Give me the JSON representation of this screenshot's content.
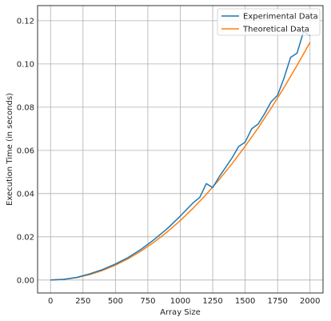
{
  "chart_data": {
    "type": "line",
    "title": "",
    "xlabel": "Array Size",
    "ylabel": "Execution Time (in seconds)",
    "xlim": [
      -100,
      2100
    ],
    "ylim": [
      -0.006,
      0.127
    ],
    "xticks": [
      0,
      250,
      500,
      750,
      1000,
      1250,
      1500,
      1750,
      2000
    ],
    "yticks": [
      0.0,
      0.02,
      0.04,
      0.06,
      0.08,
      0.1,
      0.12
    ],
    "ytick_labels": [
      "0.00",
      "0.02",
      "0.04",
      "0.06",
      "0.08",
      "0.10",
      "0.12"
    ],
    "grid": true,
    "legend_position": "top-right",
    "series": [
      {
        "name": "Experimental Data",
        "color": "#1f77b4",
        "x": [
          0,
          100,
          200,
          300,
          400,
          500,
          600,
          700,
          800,
          900,
          1000,
          1100,
          1150,
          1200,
          1250,
          1300,
          1350,
          1400,
          1450,
          1500,
          1550,
          1600,
          1650,
          1700,
          1750,
          1800,
          1850,
          1900,
          1950,
          2000
        ],
        "y": [
          0.0,
          0.0003,
          0.0012,
          0.0028,
          0.0048,
          0.0074,
          0.0105,
          0.0143,
          0.0188,
          0.0238,
          0.0296,
          0.0358,
          0.0382,
          0.0446,
          0.0428,
          0.0478,
          0.0522,
          0.0566,
          0.0618,
          0.0638,
          0.07,
          0.0722,
          0.077,
          0.0825,
          0.0855,
          0.0935,
          0.103,
          0.105,
          0.115,
          0.113
        ]
      },
      {
        "name": "Theoretical Data",
        "color": "#ff7f0e",
        "x": [
          0,
          100,
          200,
          300,
          400,
          500,
          600,
          700,
          800,
          900,
          1000,
          1100,
          1200,
          1300,
          1400,
          1500,
          1600,
          1700,
          1800,
          1900,
          2000
        ],
        "y": [
          0.0,
          0.0003,
          0.0011,
          0.0025,
          0.0044,
          0.0069,
          0.0099,
          0.0135,
          0.0176,
          0.0223,
          0.0275,
          0.0333,
          0.0396,
          0.0465,
          0.0539,
          0.0619,
          0.0704,
          0.0795,
          0.0891,
          0.0993,
          0.11
        ]
      }
    ]
  }
}
